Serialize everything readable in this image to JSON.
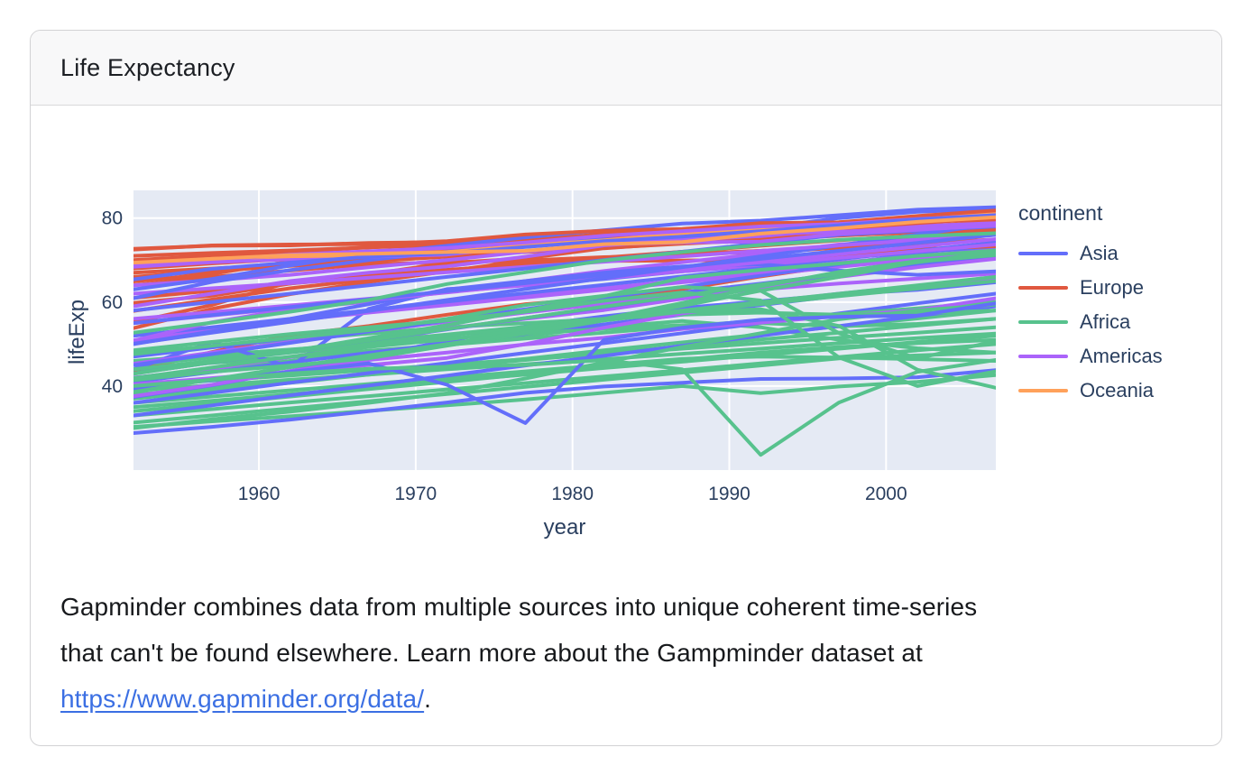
{
  "card": {
    "title": "Life Expectancy"
  },
  "description": {
    "line1": "Gapminder combines data from multiple sources into unique coherent time-series",
    "line2": "that can't be found elsewhere. Learn more about the Gampminder dataset at",
    "link_text": "https://www.gapminder.org/data/",
    "suffix": ".",
    "link_color": "#3b6fe3"
  },
  "chart_data": {
    "type": "line",
    "title": "",
    "xlabel": "year",
    "ylabel": "lifeExp",
    "legend_title": "continent",
    "legend_position": "right",
    "grid": true,
    "plot_bg": "#e5eaf4",
    "grid_color": "#ffffff",
    "tick_color": "#2a3f5f",
    "line_width": 4,
    "x": [
      1952,
      1957,
      1962,
      1967,
      1972,
      1977,
      1982,
      1987,
      1992,
      1997,
      2002,
      2007
    ],
    "xlim": [
      1952,
      2007
    ],
    "ylim": [
      20,
      86.6
    ],
    "xticks": [
      1960,
      1970,
      1980,
      1990,
      2000
    ],
    "yticks": [
      40,
      60,
      80
    ],
    "continents": [
      {
        "name": "Asia",
        "color": "#636efa",
        "series": [
          [
            37.4,
            40.2,
            43.6,
            47.2,
            50.7,
            54.2,
            56.6,
            58.6,
            60.2,
            61.8,
            62.9,
            64.7
          ],
          [
            36.0,
            38.4,
            40.8,
            43.1,
            45.5,
            47.9,
            50.2,
            52.6,
            55.0,
            57.3,
            59.7,
            62.0
          ],
          [
            41.0,
            43.3,
            45.6,
            47.9,
            50.1,
            52.4,
            54.7,
            57.0,
            59.3,
            61.5,
            63.8,
            66.0
          ],
          [
            33.0,
            35.4,
            37.8,
            40.1,
            42.5,
            44.9,
            47.2,
            49.6,
            52.0,
            54.3,
            56.7,
            59.0
          ],
          [
            47.0,
            49.2,
            51.4,
            53.5,
            55.7,
            57.9,
            60.1,
            62.3,
            64.4,
            66.6,
            68.8,
            71.0
          ],
          [
            28.8,
            30.3,
            32.0,
            34.0,
            36.1,
            38.4,
            39.9,
            40.8,
            41.7,
            41.8,
            42.1,
            43.8
          ],
          [
            44.0,
            50.5,
            44.5,
            58.4,
            63.1,
            64.0,
            65.5,
            67.3,
            68.7,
            70.4,
            72.0,
            73.0
          ],
          [
            43.0,
            45.6,
            48.3,
            50.9,
            53.5,
            56.2,
            58.8,
            61.5,
            64.1,
            66.7,
            69.4,
            72.0
          ],
          [
            45.0,
            47.6,
            50.3,
            53.0,
            55.6,
            58.3,
            61.0,
            63.6,
            66.3,
            69.0,
            71.6,
            74.0
          ],
          [
            52.0,
            54.0,
            56.0,
            58.1,
            60.1,
            62.1,
            64.1,
            66.1,
            68.1,
            70.2,
            72.2,
            74.2
          ],
          [
            39.4,
            41.4,
            43.4,
            45.4,
            40.3,
            31.2,
            51.0,
            53.9,
            55.8,
            56.5,
            56.8,
            59.7
          ],
          [
            50.0,
            53.0,
            56.0,
            59.5,
            63.0,
            65.0,
            67.0,
            68.5,
            69.0,
            67.5,
            66.5,
            67.3
          ],
          [
            50.1,
            52.7,
            55.3,
            57.9,
            60.5,
            63.1,
            65.7,
            68.3,
            70.9,
            73.5,
            76.1,
            78.6
          ],
          [
            55.0,
            56.9,
            58.8,
            60.7,
            62.6,
            64.5,
            66.5,
            68.4,
            70.3,
            72.2,
            74.1,
            76.0
          ],
          [
            58.0,
            60.0,
            62.0,
            64.0,
            66.0,
            68.0,
            70.0,
            72.0,
            74.0,
            76.0,
            77.0,
            78.0
          ],
          [
            60.9,
            64.8,
            67.6,
            70.0,
            72.0,
            73.6,
            75.4,
            76.2,
            77.6,
            80.0,
            81.5,
            82.2
          ],
          [
            63.0,
            65.5,
            68.7,
            71.4,
            73.4,
            75.4,
            77.1,
            78.7,
            79.4,
            80.7,
            82.0,
            82.6
          ],
          [
            65.4,
            67.9,
            69.4,
            70.8,
            71.6,
            73.1,
            74.5,
            75.6,
            76.9,
            78.3,
            79.7,
            80.7
          ]
        ]
      },
      {
        "name": "Europe",
        "color": "#e0583f",
        "series": [
          [
            43.6,
            48.1,
            52.1,
            54.3,
            57.0,
            59.5,
            61.0,
            63.1,
            66.1,
            68.8,
            70.8,
            71.8
          ],
          [
            53.8,
            58.4,
            61.9,
            64.8,
            67.3,
            69.9,
            70.7,
            71.1,
            72.2,
            73.0,
            74.1,
            74.9
          ],
          [
            55.2,
            59.3,
            64.8,
            66.2,
            67.7,
            68.9,
            70.4,
            72.0,
            71.6,
            73.0,
            75.7,
            76.4
          ],
          [
            57.9,
            60.6,
            63.3,
            65.4,
            67.5,
            68.9,
            70.2,
            71.5,
            72.2,
            72.9,
            73.8,
            74.9
          ],
          [
            59.8,
            61.5,
            64.4,
            66.6,
            69.3,
            70.4,
            72.8,
            74.1,
            74.9,
            75.9,
            77.3,
            78.1
          ],
          [
            64.0,
            66.0,
            67.5,
            69.0,
            69.5,
            69.9,
            69.8,
            69.9,
            70.0,
            70.9,
            72.6,
            73.3
          ],
          [
            61.0,
            62.7,
            64.4,
            66.0,
            67.6,
            69.1,
            70.6,
            72.0,
            73.4,
            74.7,
            75.9,
            77.0
          ],
          [
            64.9,
            66.7,
            69.7,
            71.4,
            73.1,
            74.4,
            76.3,
            76.9,
            77.6,
            78.8,
            79.8,
            80.9
          ],
          [
            66.0,
            67.4,
            68.6,
            69.7,
            70.8,
            72.0,
            73.2,
            74.4,
            75.6,
            76.8,
            78.0,
            79.0
          ],
          [
            67.0,
            68.0,
            69.0,
            70.0,
            71.0,
            71.9,
            72.9,
            73.9,
            74.8,
            75.8,
            76.7,
            77.5
          ],
          [
            69.6,
            70.4,
            71.2,
            72.0,
            72.8,
            73.6,
            74.5,
            75.3,
            76.1,
            76.9,
            77.7,
            79.4
          ],
          [
            68.0,
            69.2,
            70.3,
            71.5,
            72.6,
            73.8,
            74.9,
            76.1,
            77.2,
            78.4,
            79.5,
            80.6
          ],
          [
            70.0,
            71.0,
            72.0,
            73.0,
            74.0,
            75.0,
            76.0,
            77.0,
            78.0,
            79.0,
            80.0,
            81.0
          ],
          [
            71.0,
            71.7,
            72.3,
            73.0,
            73.6,
            74.3,
            74.9,
            75.6,
            76.2,
            77.5,
            78.8,
            80.0
          ],
          [
            72.7,
            73.4,
            73.5,
            74.1,
            74.3,
            75.4,
            75.8,
            75.9,
            77.0,
            78.3,
            79.1,
            80.2
          ],
          [
            72.5,
            73.5,
            73.7,
            73.8,
            74.5,
            76.1,
            77.0,
            77.4,
            78.8,
            79.0,
            80.5,
            81.8
          ]
        ]
      },
      {
        "name": "Africa",
        "color": "#57c28d",
        "series": [
          [
            35.0,
            36.5,
            38.1,
            39.6,
            41.2,
            42.7,
            44.3,
            45.8,
            47.4,
            48.9,
            50.5,
            52.0
          ],
          [
            38.0,
            39.6,
            41.3,
            42.9,
            44.5,
            46.2,
            47.8,
            49.5,
            51.1,
            52.7,
            54.4,
            56.0
          ],
          [
            31.3,
            33.0,
            34.7,
            36.4,
            38.1,
            39.8,
            41.5,
            43.2,
            44.9,
            46.6,
            47.3,
            48.0
          ],
          [
            33.0,
            34.5,
            36.1,
            37.6,
            39.2,
            40.7,
            42.3,
            43.8,
            45.4,
            46.9,
            48.5,
            50.0
          ],
          [
            36.0,
            37.5,
            39.0,
            40.5,
            42.0,
            43.5,
            45.0,
            46.5,
            47.0,
            46.8,
            46.4,
            46.0
          ],
          [
            39.0,
            40.2,
            41.5,
            42.7,
            44.0,
            45.2,
            46.4,
            47.7,
            48.9,
            50.2,
            51.4,
            52.5
          ],
          [
            40.0,
            41.3,
            42.5,
            43.8,
            45.1,
            46.4,
            47.6,
            48.9,
            50.2,
            51.5,
            52.7,
            54.0
          ],
          [
            37.0,
            38.9,
            40.8,
            42.7,
            44.6,
            46.5,
            48.5,
            50.4,
            52.3,
            54.2,
            56.1,
            58.0
          ],
          [
            34.0,
            35.8,
            37.5,
            39.3,
            41.0,
            42.8,
            44.5,
            46.3,
            48.0,
            49.3,
            50.2,
            51.0
          ],
          [
            42.0,
            44.0,
            46.0,
            48.0,
            50.0,
            52.0,
            54.0,
            55.5,
            54.0,
            51.0,
            49.0,
            48.0
          ],
          [
            44.0,
            45.5,
            46.9,
            48.4,
            49.8,
            51.3,
            52.7,
            54.2,
            55.6,
            57.1,
            58.5,
            60.0
          ],
          [
            46.0,
            47.4,
            48.7,
            50.0,
            51.3,
            52.5,
            53.6,
            54.5,
            55.0,
            54.2,
            54.8,
            56.0
          ],
          [
            48.0,
            49.5,
            51.0,
            52.5,
            54.0,
            55.0,
            56.0,
            57.0,
            57.5,
            57.0,
            57.3,
            58.0
          ],
          [
            30.3,
            31.6,
            32.8,
            34.1,
            35.4,
            36.8,
            38.4,
            40.0,
            38.3,
            39.9,
            41.0,
            42.6
          ],
          [
            45.0,
            46.8,
            48.6,
            50.5,
            52.3,
            54.1,
            55.9,
            57.7,
            59.5,
            61.4,
            63.2,
            65.0
          ],
          [
            44.0,
            46.0,
            48.0,
            50.0,
            52.0,
            54.0,
            56.0,
            58.0,
            60.0,
            62.0,
            64.0,
            66.0
          ],
          [
            30.0,
            32.1,
            33.9,
            36.0,
            38.3,
            41.8,
            45.6,
            49.3,
            52.6,
            55.9,
            58.0,
            59.4
          ],
          [
            47.6,
            49.6,
            51.5,
            53.3,
            56.0,
            59.3,
            61.5,
            63.6,
            62.7,
            52.6,
            46.6,
            50.7
          ],
          [
            41.4,
            43.4,
            44.9,
            46.6,
            49.6,
            52.5,
            55.6,
            57.7,
            58.3,
            54.3,
            43.9,
            39.6
          ],
          [
            48.5,
            50.5,
            52.4,
            54.0,
            55.6,
            57.7,
            60.3,
            62.3,
            60.4,
            46.8,
            40.0,
            43.5
          ],
          [
            40.0,
            41.5,
            43.0,
            44.1,
            44.6,
            45.0,
            46.2,
            44.0,
            23.6,
            36.1,
            43.4,
            46.2
          ],
          [
            41.9,
            44.4,
            47.0,
            49.3,
            51.1,
            53.3,
            56.0,
            59.8,
            63.7,
            67.2,
            69.8,
            71.3
          ],
          [
            38.6,
            41.6,
            44.5,
            47.3,
            50.0,
            52.8,
            55.7,
            59.1,
            62.7,
            66.0,
            69.6,
            71.2
          ],
          [
            42.9,
            45.7,
            48.3,
            51.4,
            54.5,
            58.0,
            61.4,
            65.8,
            67.7,
            69.2,
            71.0,
            72.3
          ],
          [
            43.0,
            45.6,
            48.3,
            50.9,
            53.6,
            56.2,
            58.9,
            61.5,
            64.2,
            66.8,
            69.5,
            72.0
          ],
          [
            52.7,
            55.1,
            57.7,
            60.5,
            64.3,
            67.1,
            69.9,
            71.9,
            73.6,
            74.8,
            75.7,
            76.4
          ]
        ]
      },
      {
        "name": "Americas",
        "color": "#ab63fa",
        "series": [
          [
            37.6,
            40.3,
            43.6,
            46.2,
            48.0,
            49.9,
            51.5,
            53.6,
            55.1,
            56.7,
            58.1,
            60.9
          ],
          [
            40.4,
            41.9,
            43.4,
            45.0,
            46.7,
            50.0,
            53.9,
            57.3,
            59.9,
            62.0,
            63.9,
            65.6
          ],
          [
            42.0,
            44.1,
            46.9,
            50.0,
            53.7,
            56.0,
            58.1,
            60.8,
            63.4,
            66.0,
            68.3,
            70.3
          ],
          [
            45.3,
            48.0,
            50.5,
            53.0,
            55.3,
            57.5,
            59.6,
            61.4,
            63.0,
            64.4,
            65.6,
            66.8
          ],
          [
            52.0,
            53.8,
            55.6,
            57.5,
            59.3,
            61.1,
            62.9,
            64.7,
            66.5,
            68.4,
            70.2,
            72.0
          ],
          [
            50.9,
            53.3,
            55.7,
            57.6,
            59.5,
            61.5,
            63.3,
            65.2,
            67.1,
            69.4,
            71.0,
            72.4
          ],
          [
            50.8,
            55.2,
            58.3,
            60.1,
            62.4,
            65.0,
            67.4,
            69.5,
            71.5,
            73.7,
            74.9,
            76.2
          ],
          [
            56.0,
            57.6,
            59.2,
            60.8,
            62.4,
            64.0,
            65.7,
            67.3,
            68.9,
            70.5,
            72.1,
            73.7
          ],
          [
            55.0,
            56.8,
            58.6,
            60.5,
            62.3,
            64.1,
            65.9,
            67.7,
            69.5,
            71.4,
            73.2,
            75.0
          ],
          [
            62.0,
            63.3,
            64.5,
            65.8,
            67.1,
            68.4,
            69.6,
            70.9,
            72.2,
            73.5,
            74.7,
            76.0
          ],
          [
            59.0,
            62.0,
            65.0,
            67.0,
            68.5,
            70.8,
            73.5,
            74.8,
            75.7,
            77.3,
            78.1,
            78.8
          ],
          [
            64.0,
            65.2,
            66.5,
            68.3,
            70.0,
            72.0,
            73.8,
            74.2,
            74.4,
            76.2,
            77.2,
            78.3
          ],
          [
            68.4,
            69.5,
            70.2,
            70.8,
            71.3,
            73.4,
            74.6,
            75.0,
            76.1,
            76.8,
            77.3,
            78.2
          ],
          [
            68.8,
            70.0,
            71.3,
            72.1,
            72.9,
            74.2,
            75.8,
            76.9,
            78.0,
            78.6,
            79.8,
            80.7
          ]
        ]
      },
      {
        "name": "Oceania",
        "color": "#ffa15a",
        "series": [
          [
            69.1,
            70.3,
            70.9,
            71.1,
            71.9,
            73.5,
            74.7,
            76.3,
            77.6,
            78.8,
            80.4,
            81.2
          ],
          [
            69.4,
            70.3,
            71.2,
            71.5,
            71.9,
            72.2,
            73.8,
            74.3,
            76.3,
            77.6,
            79.1,
            80.2
          ]
        ]
      }
    ]
  }
}
